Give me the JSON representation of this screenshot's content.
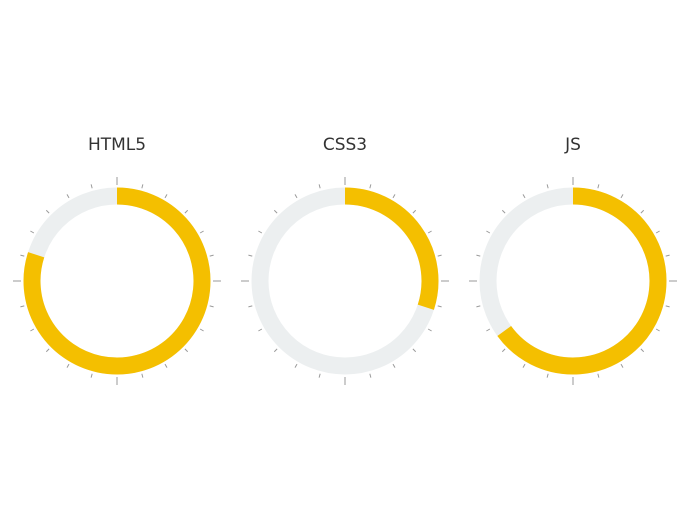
{
  "colors": {
    "fill": "#f4bf00",
    "track": "#eceff0",
    "tick": "#9a9a9a"
  },
  "chart_data": {
    "type": "pie",
    "subtype": "donut-gauge",
    "start": "top",
    "direction": "clockwise",
    "value_range": [
      0,
      100
    ],
    "tick_count": 24,
    "gauges": [
      {
        "label": "HTML5",
        "value": 80
      },
      {
        "label": "CSS3",
        "value": 30
      },
      {
        "label": "JS",
        "value": 65
      }
    ]
  }
}
